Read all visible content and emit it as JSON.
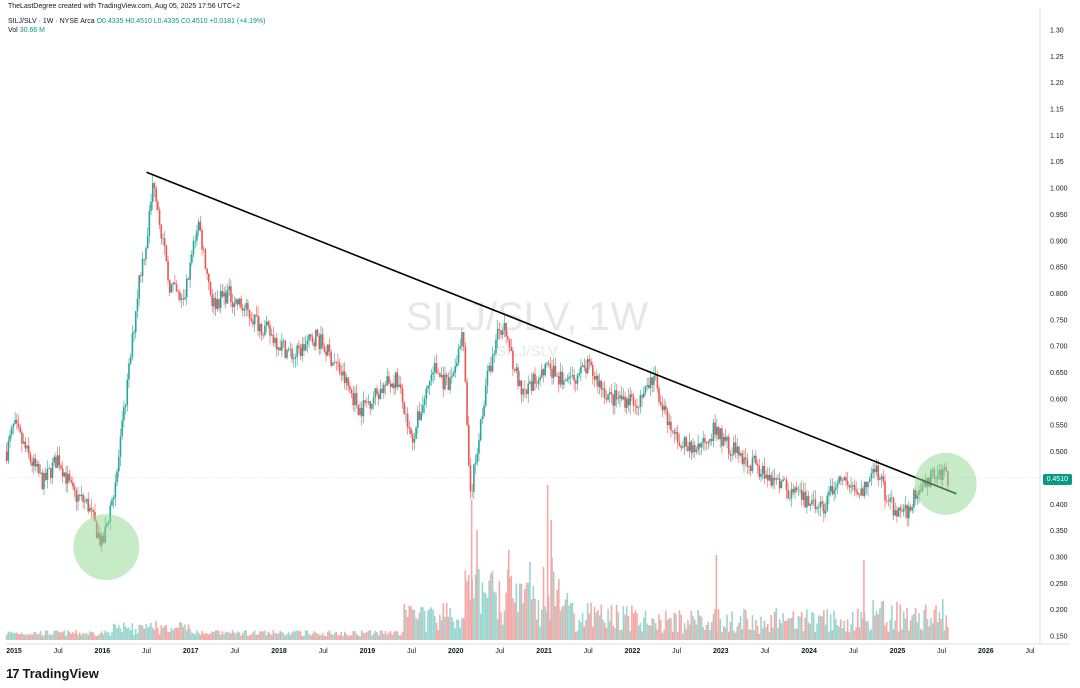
{
  "header": {
    "attribution": "TheLastDegree created with TradingView.com, Aug 05, 2025 17:56 UTC+2",
    "symbol": "SILJ/SLV · 1W · NYSE Arca",
    "ohlc": "O0.4335 H0.4510 L0.4335 C0.4510 +0.0181 (+4.19%)",
    "vol_label": "Vol",
    "vol_value": "30.66 M"
  },
  "watermark": {
    "main": "SILJ/SLV, 1W",
    "sub": "SILJ/SLV"
  },
  "price_tag": "0.4510",
  "brand": "TradingView",
  "colors": {
    "up": "#26a69a",
    "down": "#ef5350",
    "vol_up": "#9ad6cf",
    "vol_down": "#f4a9a7",
    "trendline": "#000000",
    "highlight": "#8fd88f"
  },
  "chart_data": {
    "type": "candlestick",
    "title": "",
    "yticks": [
      0.15,
      0.2,
      0.25,
      0.3,
      0.35,
      0.4,
      0.45,
      0.5,
      0.55,
      0.6,
      0.65,
      0.7,
      0.75,
      0.8,
      0.85,
      0.9,
      0.95,
      1.0,
      1.05,
      1.1,
      1.15,
      1.2,
      1.25,
      1.3
    ],
    "ytick_labels": [
      "0.150",
      "0.200",
      "0.250",
      "0.300",
      "0.350",
      "0.400",
      "0.450",
      "0.500",
      "0.550",
      "0.600",
      "0.650",
      "0.700",
      "0.750",
      "0.800",
      "0.850",
      "0.900",
      "0.950",
      "1.000",
      "1.05",
      "1.10",
      "1.15",
      "1.20",
      "1.25",
      "1.30"
    ],
    "xticks": [
      "2015",
      "Jul",
      "2016",
      "Jul",
      "2017",
      "Jul",
      "2018",
      "Jul",
      "2019",
      "Jul",
      "2020",
      "Jul",
      "2021",
      "Jul",
      "2022",
      "Jul",
      "2023",
      "Jul",
      "2024",
      "Jul",
      "2025",
      "Jul",
      "2026",
      "Jul"
    ],
    "xtick_dates": [
      "2015-01",
      "2015-07",
      "2016-01",
      "2016-07",
      "2017-01",
      "2017-07",
      "2018-01",
      "2018-07",
      "2019-01",
      "2019-07",
      "2020-01",
      "2020-07",
      "2021-01",
      "2021-07",
      "2022-01",
      "2022-07",
      "2023-01",
      "2023-07",
      "2024-01",
      "2024-07",
      "2025-01",
      "2025-07",
      "2026-01",
      "2026-07"
    ],
    "price_path": [
      {
        "date": "2014-12",
        "close": 0.5
      },
      {
        "date": "2015-01",
        "close": 0.55
      },
      {
        "date": "2015-03",
        "close": 0.49
      },
      {
        "date": "2015-05",
        "close": 0.44
      },
      {
        "date": "2015-07",
        "close": 0.49
      },
      {
        "date": "2015-09",
        "close": 0.42
      },
      {
        "date": "2015-11",
        "close": 0.4
      },
      {
        "date": "2016-01",
        "close": 0.32
      },
      {
        "date": "2016-03",
        "close": 0.46
      },
      {
        "date": "2016-05",
        "close": 0.7
      },
      {
        "date": "2016-06",
        "close": 0.83
      },
      {
        "date": "2016-07",
        "close": 0.9
      },
      {
        "date": "2016-08",
        "close": 1.02
      },
      {
        "date": "2016-10",
        "close": 0.82
      },
      {
        "date": "2016-12",
        "close": 0.78
      },
      {
        "date": "2017-02",
        "close": 0.94
      },
      {
        "date": "2017-04",
        "close": 0.78
      },
      {
        "date": "2017-06",
        "close": 0.8
      },
      {
        "date": "2017-09",
        "close": 0.76
      },
      {
        "date": "2017-12",
        "close": 0.72
      },
      {
        "date": "2018-03",
        "close": 0.68
      },
      {
        "date": "2018-06",
        "close": 0.72
      },
      {
        "date": "2018-09",
        "close": 0.66
      },
      {
        "date": "2018-12",
        "close": 0.58
      },
      {
        "date": "2019-03",
        "close": 0.62
      },
      {
        "date": "2019-05",
        "close": 0.64
      },
      {
        "date": "2019-07",
        "close": 0.52
      },
      {
        "date": "2019-10",
        "close": 0.66
      },
      {
        "date": "2019-12",
        "close": 0.62
      },
      {
        "date": "2020-02",
        "close": 0.72
      },
      {
        "date": "2020-03",
        "close": 0.41
      },
      {
        "date": "2020-05",
        "close": 0.62
      },
      {
        "date": "2020-07",
        "close": 0.74
      },
      {
        "date": "2020-08",
        "close": 0.72
      },
      {
        "date": "2020-10",
        "close": 0.6
      },
      {
        "date": "2021-01",
        "close": 0.66
      },
      {
        "date": "2021-04",
        "close": 0.63
      },
      {
        "date": "2021-07",
        "close": 0.66
      },
      {
        "date": "2021-10",
        "close": 0.6
      },
      {
        "date": "2022-02",
        "close": 0.6
      },
      {
        "date": "2022-04",
        "close": 0.64
      },
      {
        "date": "2022-06",
        "close": 0.54
      },
      {
        "date": "2022-09",
        "close": 0.5
      },
      {
        "date": "2022-12",
        "close": 0.54
      },
      {
        "date": "2023-03",
        "close": 0.5
      },
      {
        "date": "2023-06",
        "close": 0.47
      },
      {
        "date": "2023-09",
        "close": 0.44
      },
      {
        "date": "2023-12",
        "close": 0.41
      },
      {
        "date": "2024-03",
        "close": 0.39
      },
      {
        "date": "2024-05",
        "close": 0.45
      },
      {
        "date": "2024-08",
        "close": 0.42
      },
      {
        "date": "2024-10",
        "close": 0.47
      },
      {
        "date": "2024-12",
        "close": 0.4
      },
      {
        "date": "2025-02",
        "close": 0.38
      },
      {
        "date": "2025-04",
        "close": 0.43
      },
      {
        "date": "2025-06",
        "close": 0.46
      },
      {
        "date": "2025-08",
        "close": 0.451
      }
    ],
    "trendline": {
      "start": {
        "date": "2016-07",
        "value": 1.03
      },
      "end": {
        "date": "2025-09",
        "value": 0.42
      }
    },
    "highlights": [
      {
        "date": "2016-01",
        "value": 0.33
      },
      {
        "date": "2025-07",
        "value": 0.45
      }
    ],
    "last_price": 0.451,
    "ylim": [
      0.15,
      1.32
    ]
  }
}
